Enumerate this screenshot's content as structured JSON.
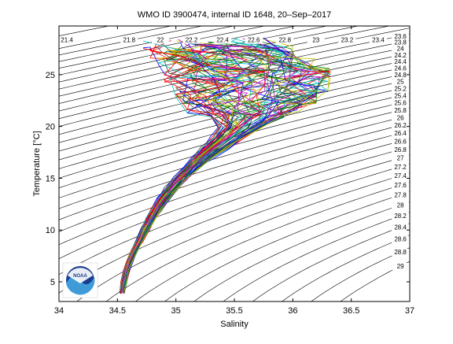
{
  "chart_data": {
    "type": "line",
    "title": "WMO ID 3900474, internal ID 1648, 20–Sep–2017",
    "xlabel": "Salinity",
    "ylabel": "Temperature [°C]",
    "xlim": [
      34,
      37
    ],
    "ylim": [
      3.1,
      29.7
    ],
    "x_ticks": [
      "34",
      "34.5",
      "35",
      "35.5",
      "36",
      "36.5",
      "37"
    ],
    "y_ticks": [
      "5",
      "10",
      "15",
      "20",
      "25"
    ],
    "grid": false,
    "legend": "none",
    "density_contours": [
      "21.4",
      "21.8",
      "22",
      "22.2",
      "22.4",
      "22.6",
      "22.8",
      "23",
      "23.2",
      "23.4",
      "23.6",
      "23.8",
      "24",
      "24.2",
      "24.4",
      "24.6",
      "24.8",
      "25",
      "25.2",
      "25.4",
      "25.6",
      "25.8",
      "26",
      "26.2",
      "26.4",
      "26.6",
      "26.8",
      "27",
      "27.2",
      "27.4",
      "27.6",
      "27.8",
      "28",
      "28.2",
      "28.4",
      "28.6",
      "28.8",
      "29"
    ],
    "profile_envelope": {
      "temperature": [
        4.0,
        5.0,
        6.0,
        7.0,
        8.0,
        9.0,
        10.0,
        11.0,
        12.0,
        13.0,
        14.0,
        15.0,
        16.0,
        17.0,
        18.0,
        19.0,
        20.0,
        21.0,
        22.0,
        23.0,
        24.0,
        25.0,
        26.0,
        27.0,
        27.8
      ],
      "salinity_min": [
        34.52,
        34.53,
        34.55,
        34.58,
        34.62,
        34.66,
        34.7,
        34.74,
        34.79,
        34.84,
        34.9,
        34.98,
        35.06,
        35.14,
        35.22,
        35.3,
        35.36,
        35.3,
        35.1,
        35.0,
        34.95,
        34.9,
        34.85,
        34.78,
        34.72
      ],
      "salinity_max": [
        34.56,
        34.58,
        34.6,
        34.63,
        34.67,
        34.72,
        34.77,
        34.82,
        34.88,
        34.95,
        35.02,
        35.1,
        35.2,
        35.32,
        35.46,
        35.6,
        35.75,
        35.92,
        36.08,
        36.2,
        36.3,
        36.32,
        36.2,
        36.0,
        35.75
      ]
    },
    "colors": {
      "axes": "#000000",
      "contour": "#000000",
      "profiles": [
        "#0000ff",
        "#008000",
        "#ff0000",
        "#00bfbf",
        "#bf00bf",
        "#bfbf00",
        "#404040"
      ]
    }
  },
  "logo": {
    "text": "NOAA"
  }
}
